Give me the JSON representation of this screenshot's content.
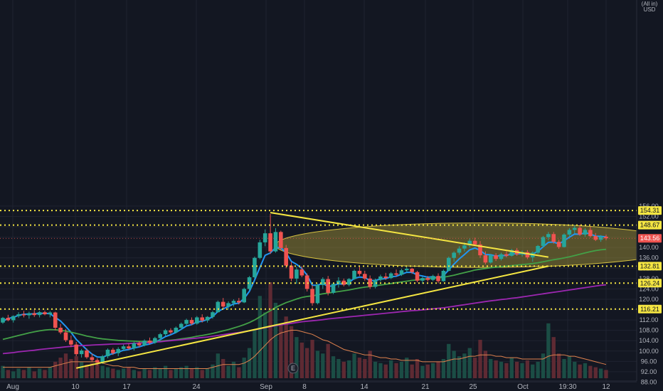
{
  "chart_data": {
    "type": "candlestick",
    "currency": "USD",
    "scale_prefix": "(All in)",
    "y_axis": {
      "ticks": [
        "156.00",
        "152.00",
        "148.00",
        "144.00",
        "140.00",
        "136.00",
        "132.00",
        "128.00",
        "124.00",
        "120.00",
        "116.00",
        "112.00",
        "108.00",
        "104.00",
        "100.00",
        "96.00",
        "92.00",
        "88.00"
      ],
      "range": [
        87.3,
        157.0
      ]
    },
    "x_axis": {
      "ticks": [
        "Aug",
        "10",
        "17",
        "24",
        "Sep",
        "8",
        "14",
        "21",
        "25",
        "Oct",
        "19:30",
        "12"
      ]
    },
    "horizontal_levels": [
      {
        "label": "154.31",
        "value": 154.31
      },
      {
        "label": "148.67",
        "value": 148.67
      },
      {
        "label": "132.81",
        "value": 132.81
      },
      {
        "label": "126.24",
        "value": 126.24
      },
      {
        "label": "116.21",
        "value": 116.21
      }
    ],
    "current_price": {
      "label": "143.56",
      "value": 143.56
    },
    "earnings_marker": "E",
    "candles_ohlc": [
      [
        111.0,
        113.2,
        110.5,
        112.8
      ],
      [
        112.8,
        114.0,
        111.5,
        111.9
      ],
      [
        111.9,
        113.8,
        111.0,
        113.5
      ],
      [
        113.5,
        115.0,
        112.8,
        114.2
      ],
      [
        114.2,
        115.5,
        113.0,
        113.8
      ],
      [
        113.8,
        115.2,
        112.5,
        114.6
      ],
      [
        114.6,
        115.8,
        113.2,
        113.9
      ],
      [
        113.9,
        115.5,
        113.0,
        115.0
      ],
      [
        115.0,
        115.6,
        113.8,
        114.2
      ],
      [
        114.2,
        115.4,
        113.0,
        114.9
      ],
      [
        114.9,
        115.2,
        108.0,
        109.0
      ],
      [
        109.0,
        110.5,
        106.5,
        107.2
      ],
      [
        107.2,
        108.5,
        103.5,
        104.2
      ],
      [
        104.2,
        106.0,
        101.5,
        102.5
      ],
      [
        102.5,
        103.5,
        98.0,
        98.8
      ],
      [
        98.8,
        100.8,
        97.5,
        100.2
      ],
      [
        100.2,
        101.0,
        97.0,
        97.6
      ],
      [
        97.6,
        99.0,
        96.0,
        96.5
      ],
      [
        96.5,
        97.2,
        94.5,
        95.6
      ],
      [
        95.6,
        98.5,
        95.0,
        98.0
      ],
      [
        98.0,
        101.0,
        97.2,
        100.5
      ],
      [
        100.5,
        101.2,
        98.5,
        99.2
      ],
      [
        99.2,
        101.5,
        98.0,
        100.8
      ],
      [
        100.8,
        102.5,
        100.0,
        101.8
      ],
      [
        101.8,
        102.8,
        100.5,
        101.0
      ],
      [
        101.0,
        103.5,
        100.2,
        103.0
      ],
      [
        103.0,
        103.8,
        101.5,
        102.2
      ],
      [
        102.2,
        104.5,
        101.8,
        104.0
      ],
      [
        104.0,
        105.2,
        102.5,
        103.2
      ],
      [
        103.2,
        105.5,
        102.8,
        105.0
      ],
      [
        105.0,
        107.0,
        104.2,
        106.5
      ],
      [
        106.5,
        108.5,
        105.8,
        108.0
      ],
      [
        108.0,
        108.8,
        106.5,
        107.2
      ],
      [
        107.2,
        109.5,
        106.8,
        109.0
      ],
      [
        109.0,
        111.0,
        108.2,
        110.5
      ],
      [
        110.5,
        112.5,
        109.8,
        112.0
      ],
      [
        112.0,
        113.0,
        110.0,
        110.6
      ],
      [
        110.6,
        113.5,
        110.2,
        113.0
      ],
      [
        113.0,
        114.2,
        111.0,
        111.8
      ],
      [
        111.8,
        113.5,
        111.0,
        113.2
      ],
      [
        113.2,
        115.5,
        112.5,
        115.0
      ],
      [
        115.0,
        119.5,
        114.8,
        119.0
      ],
      [
        119.0,
        120.5,
        116.5,
        117.2
      ],
      [
        117.2,
        119.2,
        116.0,
        118.5
      ],
      [
        118.5,
        120.0,
        117.2,
        119.4
      ],
      [
        119.4,
        120.5,
        118.0,
        118.8
      ],
      [
        118.8,
        124.5,
        118.5,
        124.0
      ],
      [
        124.0,
        129.0,
        123.5,
        128.5
      ],
      [
        128.5,
        136.5,
        128.0,
        136.0
      ],
      [
        136.0,
        143.0,
        135.5,
        142.0
      ],
      [
        142.0,
        147.0,
        140.5,
        145.5
      ],
      [
        145.5,
        153.0,
        137.5,
        138.5
      ],
      [
        138.5,
        147.5,
        138.0,
        146.0
      ],
      [
        146.0,
        146.5,
        139.0,
        139.8
      ],
      [
        139.8,
        141.0,
        132.0,
        133.0
      ],
      [
        133.0,
        134.5,
        127.0,
        128.0
      ],
      [
        128.0,
        132.5,
        126.0,
        131.5
      ],
      [
        131.5,
        132.8,
        128.5,
        129.2
      ],
      [
        129.2,
        130.0,
        123.0,
        124.0
      ],
      [
        124.0,
        125.5,
        117.5,
        118.5
      ],
      [
        118.5,
        126.0,
        118.0,
        125.5
      ],
      [
        125.5,
        128.5,
        124.0,
        127.8
      ],
      [
        127.8,
        129.0,
        121.5,
        122.5
      ],
      [
        122.5,
        126.5,
        122.0,
        126.0
      ],
      [
        126.0,
        128.5,
        124.5,
        127.2
      ],
      [
        127.2,
        128.0,
        125.0,
        125.6
      ],
      [
        125.6,
        128.2,
        125.0,
        127.8
      ],
      [
        127.8,
        131.5,
        127.5,
        131.0
      ],
      [
        131.0,
        132.5,
        129.0,
        129.8
      ],
      [
        129.8,
        131.0,
        127.2,
        128.0
      ],
      [
        128.0,
        129.2,
        124.0,
        124.8
      ],
      [
        124.8,
        128.0,
        124.2,
        127.5
      ],
      [
        127.5,
        129.5,
        126.8,
        128.8
      ],
      [
        128.8,
        130.2,
        127.5,
        128.2
      ],
      [
        128.2,
        130.5,
        127.8,
        130.0
      ],
      [
        130.0,
        131.5,
        128.8,
        129.5
      ],
      [
        129.5,
        131.8,
        129.0,
        131.2
      ],
      [
        131.2,
        132.5,
        130.5,
        131.8
      ],
      [
        131.8,
        132.2,
        129.8,
        130.5
      ],
      [
        130.5,
        131.0,
        126.5,
        127.2
      ],
      [
        127.2,
        128.8,
        126.0,
        128.2
      ],
      [
        128.2,
        129.0,
        126.8,
        127.5
      ],
      [
        127.5,
        129.5,
        127.0,
        129.0
      ],
      [
        129.0,
        130.0,
        126.2,
        127.0
      ],
      [
        127.0,
        131.5,
        126.8,
        131.0
      ],
      [
        131.0,
        136.5,
        130.8,
        136.0
      ],
      [
        136.0,
        138.5,
        134.5,
        138.0
      ],
      [
        138.0,
        140.5,
        137.2,
        139.6
      ],
      [
        139.6,
        142.0,
        138.5,
        140.8
      ],
      [
        140.8,
        143.5,
        140.0,
        142.6
      ],
      [
        142.6,
        143.8,
        140.5,
        141.2
      ],
      [
        141.2,
        142.5,
        136.0,
        137.0
      ],
      [
        137.0,
        138.5,
        133.5,
        134.2
      ],
      [
        134.2,
        137.5,
        133.8,
        137.0
      ],
      [
        137.0,
        137.8,
        134.8,
        135.6
      ],
      [
        135.6,
        138.0,
        135.0,
        137.4
      ],
      [
        137.4,
        138.5,
        136.2,
        136.8
      ],
      [
        136.8,
        139.5,
        136.5,
        139.0
      ],
      [
        139.0,
        139.8,
        136.8,
        137.4
      ],
      [
        137.4,
        138.8,
        136.5,
        138.2
      ],
      [
        138.2,
        139.0,
        135.5,
        136.2
      ],
      [
        136.2,
        138.5,
        134.5,
        138.0
      ],
      [
        138.0,
        141.0,
        137.5,
        140.6
      ],
      [
        140.6,
        144.5,
        140.0,
        144.0
      ],
      [
        144.0,
        146.0,
        142.8,
        145.2
      ],
      [
        145.2,
        146.0,
        141.5,
        142.2
      ],
      [
        142.2,
        143.0,
        139.5,
        140.2
      ],
      [
        140.2,
        145.5,
        140.0,
        145.0
      ],
      [
        145.0,
        147.5,
        144.0,
        146.8
      ],
      [
        146.8,
        148.6,
        145.5,
        147.6
      ],
      [
        147.6,
        148.8,
        144.5,
        145.0
      ],
      [
        145.0,
        147.5,
        144.2,
        146.8
      ],
      [
        146.8,
        148.0,
        143.8,
        144.4
      ],
      [
        144.4,
        145.6,
        142.5,
        143.0
      ],
      [
        143.0,
        144.8,
        142.2,
        144.2
      ],
      [
        144.2,
        145.0,
        142.8,
        143.56
      ]
    ],
    "series": [
      {
        "name": "",
        "color": "#2196f3",
        "values": [
          111.5,
          112.6,
          113.0,
          113.8,
          114.2,
          114.3,
          114.4,
          114.5,
          114.6,
          114.4,
          113.0,
          111.6,
          109.5,
          107.2,
          104.5,
          102.5,
          100.5,
          98.8,
          97.7,
          97.6,
          98.4,
          99.0,
          99.6,
          100.3,
          100.6,
          101.2,
          101.6,
          102.3,
          102.7,
          103.4,
          104.4,
          105.6,
          106.3,
          107.2,
          108.4,
          109.7,
          110.2,
          111.2,
          111.5,
          112.2,
          113.3,
          115.3,
          116.3,
          117.2,
          118.2,
          118.5,
          120.3,
          123.1,
          127.4,
          132.3,
          137.0,
          137.9,
          140.0,
          139.9,
          137.9,
          134.6,
          133.5,
          131.9,
          129.3,
          125.4,
          125.4,
          126.2,
          124.9,
          125.3,
          126.0,
          125.8,
          126.5,
          128.1,
          128.6,
          128.4,
          127.2,
          127.3,
          127.8,
          128.0,
          128.7,
          128.9,
          129.7,
          130.4,
          130.4,
          129.4,
          129.0,
          128.5,
          128.7,
          128.1,
          129.1,
          131.4,
          133.6,
          135.6,
          137.3,
          139.1,
          139.8,
          138.9,
          137.3,
          137.2,
          136.7,
          136.9,
          136.9,
          137.6,
          137.5,
          137.7,
          137.2,
          137.5,
          138.5,
          140.3,
          142.0,
          142.1,
          141.4,
          142.6,
          144.0,
          145.2,
          145.1,
          145.7,
          145.2,
          144.4,
          144.3,
          144.1
        ]
      },
      {
        "name": "",
        "color": "#43a047",
        "values": [
          104.5,
          105.0,
          105.5,
          106.0,
          106.5,
          107.0,
          107.4,
          107.8,
          108.1,
          108.3,
          108.2,
          108.0,
          107.7,
          107.3,
          106.8,
          106.3,
          105.8,
          105.4,
          105.0,
          104.7,
          104.5,
          104.3,
          104.1,
          104.0,
          103.9,
          103.8,
          103.7,
          103.7,
          103.7,
          103.7,
          103.8,
          104.0,
          104.2,
          104.4,
          104.7,
          105.0,
          105.3,
          105.7,
          106.0,
          106.4,
          106.8,
          107.3,
          107.8,
          108.3,
          108.9,
          109.5,
          110.2,
          111.0,
          112.0,
          113.2,
          114.5,
          115.6,
          116.8,
          117.8,
          118.7,
          119.4,
          120.1,
          120.7,
          121.1,
          121.3,
          121.7,
          122.1,
          122.4,
          122.7,
          123.0,
          123.3,
          123.6,
          124.0,
          124.4,
          124.7,
          124.9,
          125.2,
          125.5,
          125.8,
          126.1,
          126.4,
          126.7,
          127.0,
          127.3,
          127.5,
          127.7,
          127.9,
          128.1,
          128.3,
          128.5,
          128.9,
          129.3,
          129.8,
          130.3,
          130.8,
          131.3,
          131.6,
          131.9,
          132.2,
          132.4,
          132.6,
          132.8,
          133.0,
          133.2,
          133.4,
          133.6,
          133.8,
          134.1,
          134.5,
          134.9,
          135.3,
          135.6,
          136.0,
          136.4,
          136.9,
          137.4,
          137.9,
          138.4,
          138.8,
          139.1,
          139.3
        ]
      },
      {
        "name": "",
        "color": "#9c27b0",
        "values": [
          99.0,
          99.2,
          99.4,
          99.7,
          99.9,
          100.1,
          100.3,
          100.6,
          100.8,
          101.0,
          101.2,
          101.4,
          101.6,
          101.8,
          102.0,
          102.1,
          102.2,
          102.3,
          102.4,
          102.5,
          102.6,
          102.7,
          102.7,
          102.8,
          102.9,
          103.0,
          103.1,
          103.2,
          103.3,
          103.5,
          103.6,
          103.8,
          104.0,
          104.2,
          104.4,
          104.6,
          104.8,
          105.0,
          105.2,
          105.4,
          105.7,
          106.0,
          106.3,
          106.6,
          106.9,
          107.2,
          107.5,
          107.8,
          108.2,
          108.6,
          109.0,
          109.4,
          109.8,
          110.1,
          110.4,
          110.7,
          111.0,
          111.3,
          111.5,
          111.7,
          111.9,
          112.1,
          112.4,
          112.6,
          112.8,
          113.0,
          113.2,
          113.4,
          113.6,
          113.8,
          114.0,
          114.2,
          114.4,
          114.6,
          114.8,
          115.0,
          115.2,
          115.4,
          115.6,
          115.7,
          115.9,
          116.1,
          116.3,
          116.5,
          116.7,
          117.0,
          117.3,
          117.6,
          117.9,
          118.2,
          118.5,
          118.8,
          119.1,
          119.4,
          119.6,
          119.9,
          120.1,
          120.4,
          120.6,
          120.9,
          121.2,
          121.5,
          121.8,
          122.1,
          122.4,
          122.7,
          123.0,
          123.3,
          123.6,
          123.9,
          124.2,
          124.5,
          124.8,
          125.1,
          125.4,
          125.6
        ]
      }
    ],
    "volume": [
      9,
      6,
      5,
      7,
      6,
      8,
      5,
      7,
      6,
      8,
      12,
      15,
      18,
      14,
      16,
      12,
      10,
      11,
      13,
      9,
      8,
      7,
      6,
      7,
      8,
      6,
      5,
      7,
      6,
      8,
      7,
      9,
      6,
      7,
      8,
      9,
      7,
      8,
      6,
      7,
      10,
      18,
      14,
      9,
      12,
      8,
      15,
      22,
      35,
      60,
      48,
      70,
      55,
      40,
      45,
      38,
      30,
      26,
      22,
      28,
      20,
      18,
      25,
      16,
      14,
      12,
      13,
      18,
      15,
      14,
      20,
      12,
      11,
      10,
      13,
      11,
      12,
      15,
      10,
      14,
      9,
      10,
      11,
      12,
      14,
      25,
      20,
      16,
      18,
      22,
      15,
      28,
      20,
      14,
      13,
      12,
      11,
      15,
      12,
      11,
      13,
      10,
      12,
      18,
      40,
      30,
      18,
      14,
      16,
      12,
      10,
      11,
      9,
      8,
      7,
      6
    ],
    "volume_ma": [
      8,
      8,
      8,
      8,
      8,
      8,
      8,
      8,
      8,
      8,
      9,
      10,
      11,
      12,
      12,
      12,
      12,
      12,
      12,
      11,
      10,
      9,
      9,
      8,
      8,
      8,
      7,
      7,
      7,
      7,
      7,
      7,
      7,
      7,
      7,
      7,
      7,
      7,
      7,
      7,
      8,
      9,
      10,
      10,
      10,
      10,
      11,
      13,
      16,
      20,
      24,
      28,
      31,
      33,
      34,
      35,
      35,
      34,
      33,
      32,
      30,
      28,
      27,
      25,
      23,
      21,
      20,
      19,
      18,
      17,
      17,
      16,
      15,
      15,
      14,
      14,
      13,
      13,
      13,
      13,
      12,
      12,
      12,
      12,
      12,
      13,
      14,
      14,
      15,
      16,
      16,
      17,
      17,
      17,
      16,
      16,
      15,
      15,
      15,
      14,
      14,
      14,
      14,
      14,
      16,
      17,
      17,
      17,
      16,
      16,
      15,
      14,
      13,
      12,
      11,
      10
    ],
    "annotations": {
      "upper_trendline": [
        [
          51,
          153.5
        ],
        [
          104,
          136.3
        ]
      ],
      "lower_trendline": [
        [
          14,
          93.4
        ],
        [
          104,
          132.8
        ]
      ],
      "ellipse_region": {
        "x_center": 91,
        "x_half_width": 39,
        "y_center": 140.9,
        "y_half_height": 8.6
      }
    }
  }
}
